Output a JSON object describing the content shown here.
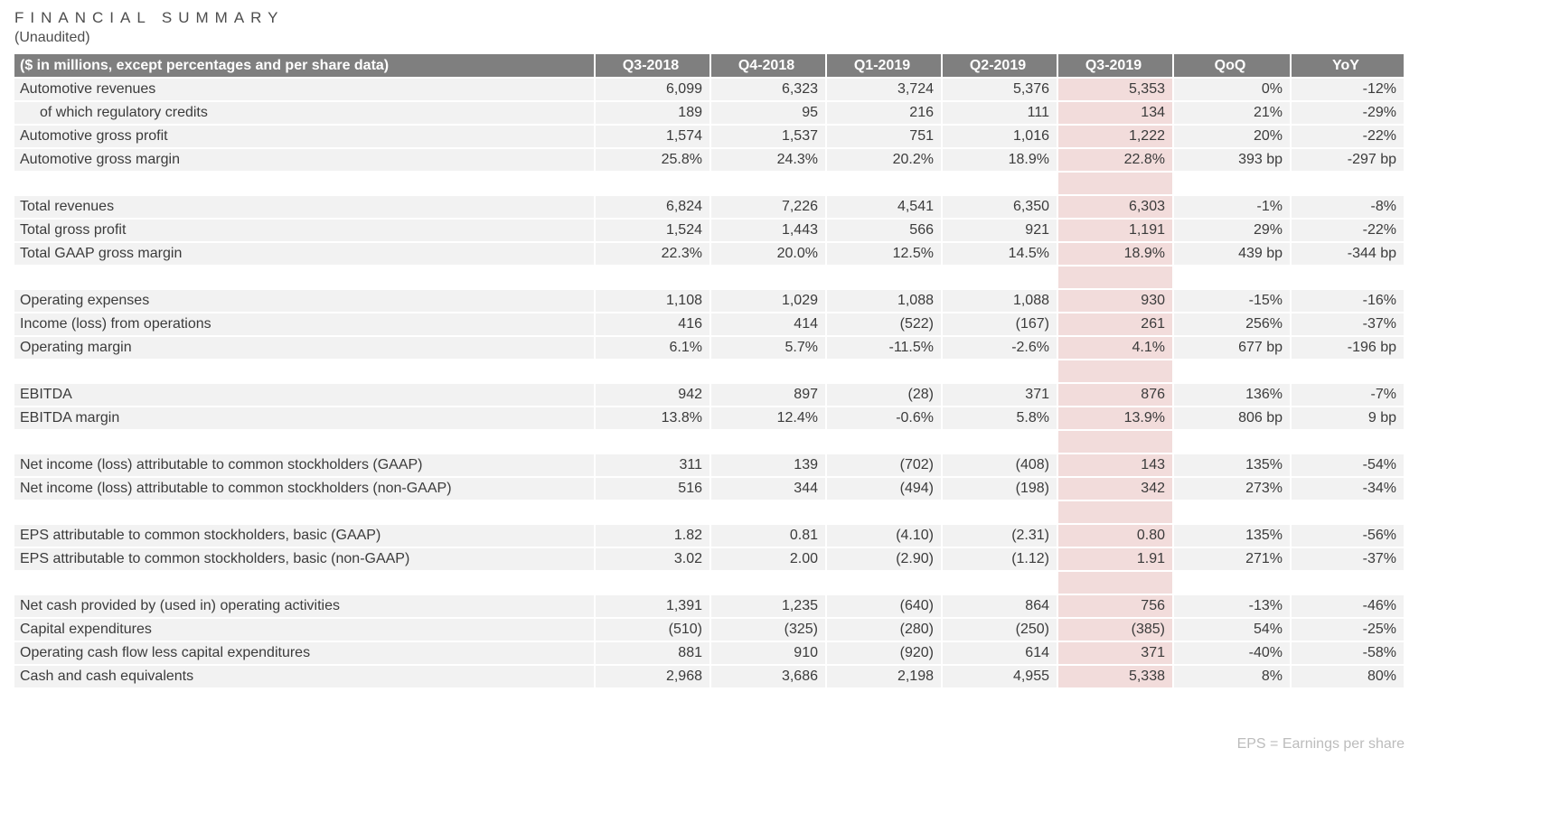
{
  "page": {
    "title": "FINANCIAL SUMMARY",
    "subtitle": "(Unaudited)",
    "footnote": "EPS = Earnings per share"
  },
  "colors": {
    "header_bg": "#7f7f7f",
    "header_text": "#ffffff",
    "row_bg": "#f2f2f2",
    "highlight_bg": "#f2dcdb",
    "text": "#3b3b3b"
  },
  "chart_data": {
    "type": "table",
    "title": "FINANCIAL SUMMARY (Unaudited)",
    "columns": [
      "($ in millions, except percentages and per share data)",
      "Q3-2018",
      "Q4-2018",
      "Q1-2019",
      "Q2-2019",
      "Q3-2019",
      "QoQ",
      "YoY"
    ],
    "highlight_column": "Q3-2019",
    "groups": [
      {
        "rows": [
          {
            "label": "Automotive revenues",
            "indent": false,
            "values": [
              "6,099",
              "6,323",
              "3,724",
              "5,376",
              "5,353",
              "0%",
              "-12%"
            ]
          },
          {
            "label": "of which regulatory credits",
            "indent": true,
            "values": [
              "189",
              "95",
              "216",
              "111",
              "134",
              "21%",
              "-29%"
            ]
          },
          {
            "label": "Automotive gross profit",
            "indent": false,
            "values": [
              "1,574",
              "1,537",
              "751",
              "1,016",
              "1,222",
              "20%",
              "-22%"
            ]
          },
          {
            "label": "Automotive gross margin",
            "indent": false,
            "values": [
              "25.8%",
              "24.3%",
              "20.2%",
              "18.9%",
              "22.8%",
              "393 bp",
              "-297 bp"
            ]
          }
        ]
      },
      {
        "rows": [
          {
            "label": "Total revenues",
            "indent": false,
            "values": [
              "6,824",
              "7,226",
              "4,541",
              "6,350",
              "6,303",
              "-1%",
              "-8%"
            ]
          },
          {
            "label": "Total gross profit",
            "indent": false,
            "values": [
              "1,524",
              "1,443",
              "566",
              "921",
              "1,191",
              "29%",
              "-22%"
            ]
          },
          {
            "label": "Total GAAP gross margin",
            "indent": false,
            "values": [
              "22.3%",
              "20.0%",
              "12.5%",
              "14.5%",
              "18.9%",
              "439 bp",
              "-344 bp"
            ]
          }
        ]
      },
      {
        "rows": [
          {
            "label": "Operating expenses",
            "indent": false,
            "values": [
              "1,108",
              "1,029",
              "1,088",
              "1,088",
              "930",
              "-15%",
              "-16%"
            ]
          },
          {
            "label": "Income (loss) from operations",
            "indent": false,
            "values": [
              "416",
              "414",
              "(522)",
              "(167)",
              "261",
              "256%",
              "-37%"
            ]
          },
          {
            "label": "Operating margin",
            "indent": false,
            "values": [
              "6.1%",
              "5.7%",
              "-11.5%",
              "-2.6%",
              "4.1%",
              "677 bp",
              "-196 bp"
            ]
          }
        ]
      },
      {
        "rows": [
          {
            "label": "EBITDA",
            "indent": false,
            "values": [
              "942",
              "897",
              "(28)",
              "371",
              "876",
              "136%",
              "-7%"
            ]
          },
          {
            "label": "EBITDA margin",
            "indent": false,
            "values": [
              "13.8%",
              "12.4%",
              "-0.6%",
              "5.8%",
              "13.9%",
              "806 bp",
              "9 bp"
            ]
          }
        ]
      },
      {
        "rows": [
          {
            "label": "Net income (loss) attributable to common stockholders (GAAP)",
            "indent": false,
            "values": [
              "311",
              "139",
              "(702)",
              "(408)",
              "143",
              "135%",
              "-54%"
            ]
          },
          {
            "label": "Net income (loss) attributable to common stockholders (non-GAAP)",
            "indent": false,
            "values": [
              "516",
              "344",
              "(494)",
              "(198)",
              "342",
              "273%",
              "-34%"
            ]
          }
        ]
      },
      {
        "rows": [
          {
            "label": "EPS attributable to common stockholders, basic (GAAP)",
            "indent": false,
            "values": [
              "1.82",
              "0.81",
              "(4.10)",
              "(2.31)",
              "0.80",
              "135%",
              "-56%"
            ]
          },
          {
            "label": "EPS attributable to common stockholders, basic (non-GAAP)",
            "indent": false,
            "values": [
              "3.02",
              "2.00",
              "(2.90)",
              "(1.12)",
              "1.91",
              "271%",
              "-37%"
            ]
          }
        ]
      },
      {
        "rows": [
          {
            "label": "Net cash provided by (used in) operating activities",
            "indent": false,
            "values": [
              "1,391",
              "1,235",
              "(640)",
              "864",
              "756",
              "-13%",
              "-46%"
            ]
          },
          {
            "label": "Capital expenditures",
            "indent": false,
            "values": [
              "(510)",
              "(325)",
              "(280)",
              "(250)",
              "(385)",
              "54%",
              "-25%"
            ]
          },
          {
            "label": "Operating cash flow less capital expenditures",
            "indent": false,
            "values": [
              "881",
              "910",
              "(920)",
              "614",
              "371",
              "-40%",
              "-58%"
            ]
          },
          {
            "label": "Cash and cash equivalents",
            "indent": false,
            "values": [
              "2,968",
              "3,686",
              "2,198",
              "4,955",
              "5,338",
              "8%",
              "80%"
            ]
          }
        ]
      }
    ]
  }
}
